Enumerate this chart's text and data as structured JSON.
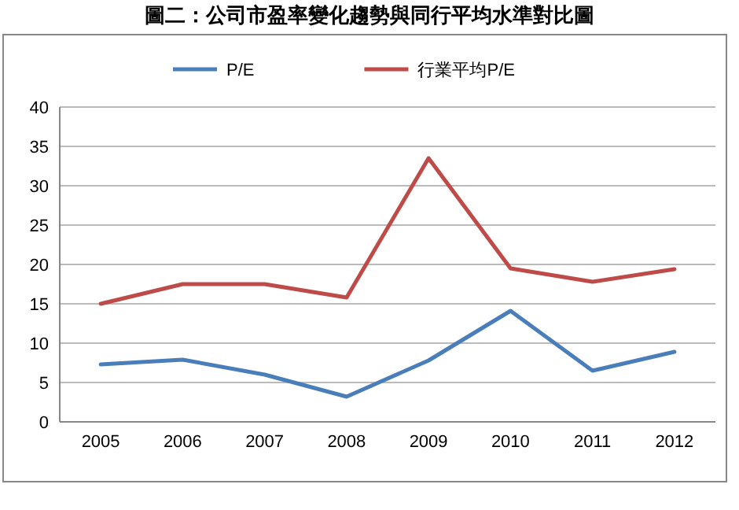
{
  "chart_data": {
    "type": "line",
    "title": "圖二：公司市盈率變化趨勢與同行平均水準對比圖",
    "categories": [
      "2005",
      "2006",
      "2007",
      "2008",
      "2009",
      "2010",
      "2011",
      "2012"
    ],
    "series": [
      {
        "name": "P/E",
        "color": "#4a7ebb",
        "values": [
          7.3,
          7.9,
          6,
          3.2,
          7.8,
          14.1,
          6.5,
          8.9
        ]
      },
      {
        "name": "行業平均P/E",
        "color": "#be4b48",
        "values": [
          15,
          17.5,
          17.5,
          15.8,
          33.5,
          19.5,
          17.8,
          19.4
        ]
      }
    ],
    "ylim": [
      0,
      40
    ],
    "yticks": [
      0,
      5,
      10,
      15,
      20,
      25,
      30,
      35,
      40
    ],
    "grid": "y",
    "legend": "top",
    "marker": "none",
    "line_style": "solid"
  }
}
